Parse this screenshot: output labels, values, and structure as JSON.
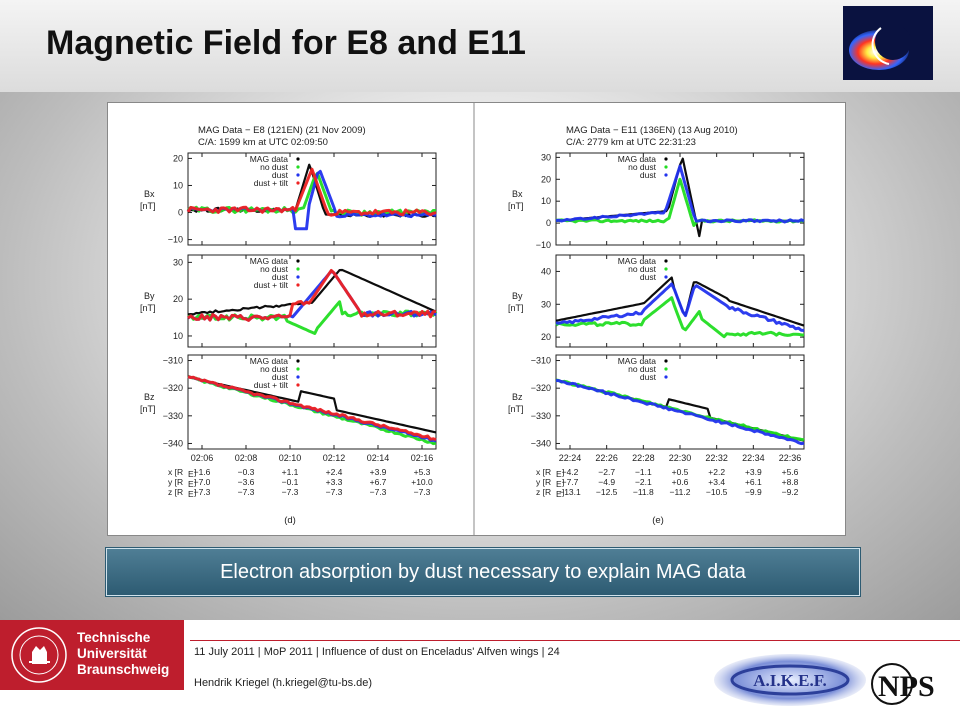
{
  "title": "Magnetic Field for E8 and E11",
  "banner": "Electron absorption by dust necessary to explain MAG data",
  "footer": {
    "info": "11 July 2011 | MoP 2011 | Influence of dust on Enceladus' Alfven wings | 24",
    "author": "Hendrik Kriegel (h.kriegel@tu-bs.de)"
  },
  "university": {
    "line1": "Technische",
    "line2": "Universität",
    "line3": "Braunschweig",
    "seal": "CAROLO-WILHELMINA BRAUNSCHWEIG"
  },
  "logos": {
    "aikef": "A.I.K.E.F.",
    "nps": "NPS"
  },
  "colors": {
    "mag": "#000000",
    "nodust": "#22dd22",
    "dust": "#2233ee",
    "tilt": "#ee2222",
    "accent": "#be1e2d"
  },
  "chart_data": [
    {
      "type": "line",
      "panel_label": "(d)",
      "title": "MAG Data  − E8 (121EN) (21 Nov 2009)",
      "subtitle": "C/A: 1599 km at UTC 02:09:50",
      "x_ticks": [
        "02:06",
        "02:08",
        "02:10",
        "02:12",
        "02:14",
        "02:16"
      ],
      "legend": [
        "MAG data",
        "no dust",
        "dust",
        "dust + tilt"
      ],
      "subplots": [
        {
          "ylabel": "Bx",
          "yunit": "[nT]",
          "ylim": [
            -12,
            22
          ],
          "yticks": [
            "20",
            "10",
            "0",
            "−10"
          ]
        },
        {
          "ylabel": "By",
          "yunit": "[nT]",
          "ylim": [
            7,
            32
          ],
          "yticks": [
            "30",
            "20",
            "10"
          ]
        },
        {
          "ylabel": "Bz",
          "yunit": "[nT]",
          "ylim": [
            -342,
            -308
          ],
          "yticks": [
            "−310",
            "−320",
            "−330",
            "−340"
          ]
        }
      ],
      "pos_labels": [
        "x [R",
        "y [R",
        "z [R"
      ],
      "pos_rows": [
        [
          "−1.6",
          "−0.3",
          "+1.1",
          "+2.4",
          "+3.9",
          "+5.3"
        ],
        [
          "−7.0",
          "−3.6",
          "−0.1",
          "+3.3",
          "+6.7",
          "+10.0"
        ],
        [
          "−7.3",
          "−7.3",
          "−7.3",
          "−7.3",
          "−7.3",
          "−7.3"
        ]
      ]
    },
    {
      "type": "line",
      "panel_label": "(e)",
      "title": "MAG Data  − E11 (136EN) (13 Aug 2010)",
      "subtitle": "C/A: 2779 km at UTC 22:31:23",
      "x_ticks": [
        "22:24",
        "22:26",
        "22:28",
        "22:30",
        "22:32",
        "22:34",
        "22:36"
      ],
      "legend": [
        "MAG data",
        "no dust",
        "dust"
      ],
      "subplots": [
        {
          "ylabel": "Bx",
          "yunit": "[nT]",
          "ylim": [
            -10,
            32
          ],
          "yticks": [
            "30",
            "20",
            "10",
            "0",
            "−10"
          ]
        },
        {
          "ylabel": "By",
          "yunit": "[nT]",
          "ylim": [
            17,
            45
          ],
          "yticks": [
            "40",
            "30",
            "20"
          ]
        },
        {
          "ylabel": "Bz",
          "yunit": "[nT]",
          "ylim": [
            -342,
            -308
          ],
          "yticks": [
            "−310",
            "−320",
            "−330",
            "−340"
          ]
        }
      ],
      "pos_labels": [
        "x [R",
        "y [R",
        "z [R"
      ],
      "pos_rows": [
        [
          "−4.2",
          "−2.7",
          "−1.1",
          "+0.5",
          "+2.2",
          "+3.9",
          "+5.6"
        ],
        [
          "−7.7",
          "−4.9",
          "−2.1",
          "+0.6",
          "+3.4",
          "+6.1",
          "+8.8"
        ],
        [
          "−13.1",
          "−12.5",
          "−11.8",
          "−11.2",
          "−10.5",
          "−9.9",
          "−9.2"
        ]
      ]
    }
  ]
}
